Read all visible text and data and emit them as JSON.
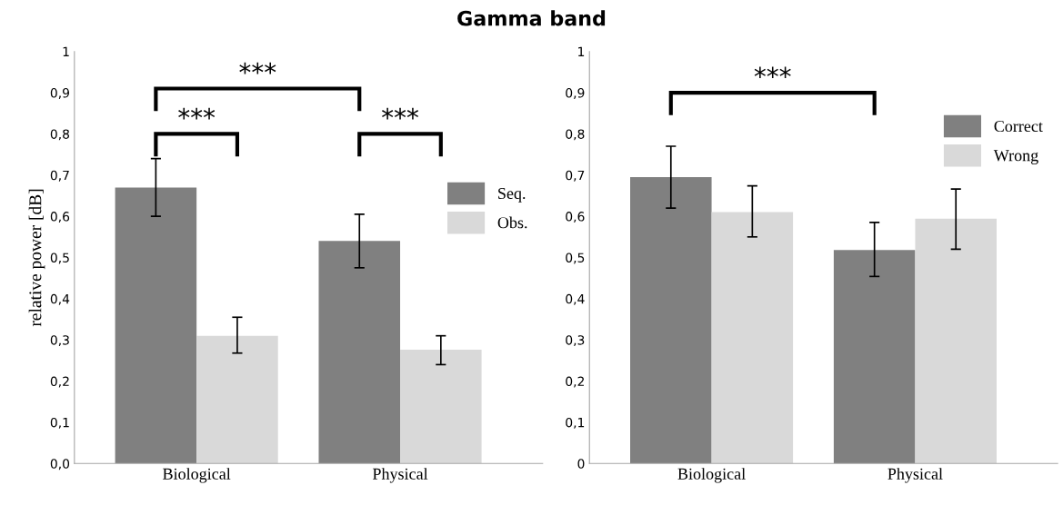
{
  "chart_data": [
    {
      "type": "bar",
      "title": "Gamma band",
      "ylabel": "relative power [dB]",
      "categories": [
        "Biological",
        "Physical"
      ],
      "series": [
        {
          "name": "Seq.",
          "color": "#808080",
          "values": [
            0.67,
            0.54
          ],
          "errors": [
            [
              0.6,
              0.74
            ],
            [
              0.475,
              0.605
            ]
          ]
        },
        {
          "name": "Obs.",
          "color": "#d9d9d9",
          "values": [
            0.31,
            0.276
          ],
          "errors": [
            [
              0.268,
              0.355
            ],
            [
              0.24,
              0.31
            ]
          ]
        }
      ],
      "ylim": [
        0,
        1
      ],
      "yticks": [
        {
          "value": 0,
          "label": "0,0"
        },
        {
          "value": 0.1,
          "label": "0,1"
        },
        {
          "value": 0.2,
          "label": "0,2"
        },
        {
          "value": 0.3,
          "label": "0,3"
        },
        {
          "value": 0.4,
          "label": "0,4"
        },
        {
          "value": 0.5,
          "label": "0,5"
        },
        {
          "value": 0.6,
          "label": "0,6"
        },
        {
          "value": 0.7,
          "label": "0,7"
        },
        {
          "value": 0.8,
          "label": "0,8"
        },
        {
          "value": 0.9,
          "label": "0,9"
        },
        1
      ],
      "annotations": [
        "***",
        "***",
        "***"
      ],
      "legend": "center right",
      "grid": false
    },
    {
      "type": "bar",
      "categories": [
        "Biological",
        "Physical"
      ],
      "series": [
        {
          "name": "Correct",
          "color": "#808080",
          "values": [
            0.695,
            0.518
          ],
          "errors": [
            [
              0.62,
              0.77
            ],
            [
              0.454,
              0.585
            ]
          ]
        },
        {
          "name": "Wrong",
          "color": "#d9d9d9",
          "values": [
            0.61,
            0.594
          ],
          "errors": [
            [
              0.55,
              0.674
            ],
            [
              0.52,
              0.666
            ]
          ]
        }
      ],
      "ylim": [
        0,
        1
      ],
      "yticks": [
        0,
        {
          "value": 0.1,
          "label": "0,1"
        },
        {
          "value": 0.2,
          "label": "0,2"
        },
        {
          "value": 0.3,
          "label": "0,3"
        },
        {
          "value": 0.4,
          "label": "0,4"
        },
        {
          "value": 0.5,
          "label": "0,5"
        },
        {
          "value": 0.6,
          "label": "0,6"
        },
        {
          "value": 0.7,
          "label": "0,7"
        },
        {
          "value": 0.8,
          "label": "0,8"
        },
        {
          "value": 0.9,
          "label": "0,9"
        },
        1
      ],
      "annotations": [
        "***"
      ],
      "legend": "upper right",
      "grid": false
    }
  ]
}
